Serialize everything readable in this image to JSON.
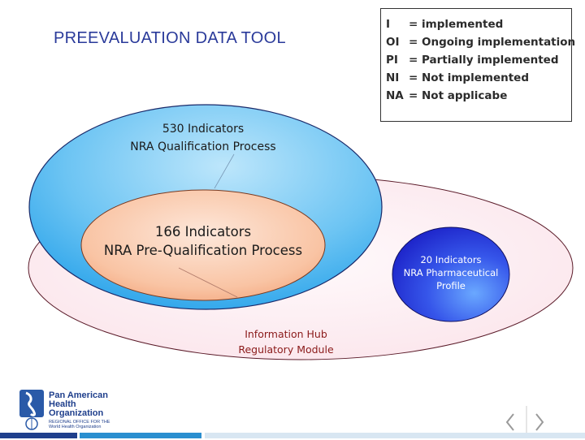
{
  "title": "PREEVALUATION DATA TOOL",
  "legend": [
    {
      "code": "I",
      "meaning": "= implemented"
    },
    {
      "code": "OI",
      "meaning": "= Ongoing implementation"
    },
    {
      "code": "PI",
      "meaning": "= Partially implemented"
    },
    {
      "code": "NI",
      "meaning": "= Not implemented"
    },
    {
      "code": "NA",
      "meaning": "= Not applicabe"
    }
  ],
  "qualification": {
    "line1": "530 Indicators",
    "line2": "NRA Qualification Process"
  },
  "prequalification": {
    "line1": "166 Indicators",
    "line2": "NRA Pre-Qualification Process"
  },
  "pharma_profile": {
    "line1": "20 Indicators",
    "line2": "NRA Pharmaceutical",
    "line3": "Profile"
  },
  "info_hub": {
    "line1": "Information Hub",
    "line2": "Regulatory Module"
  },
  "logo": {
    "line1": "Pan American",
    "line2": "Health",
    "line3": "Organization",
    "sub1": "REGIONAL OFFICE FOR THE",
    "sub2": "World Health Organization"
  },
  "colors": {
    "title": "#2a3a9a",
    "outer_fill": "#fdeef2",
    "qual_fill": "#3aaef0",
    "preq_fill": "#f7b48e",
    "pharma_fill": "#2838d8",
    "hub_text": "#8b1a1a"
  }
}
